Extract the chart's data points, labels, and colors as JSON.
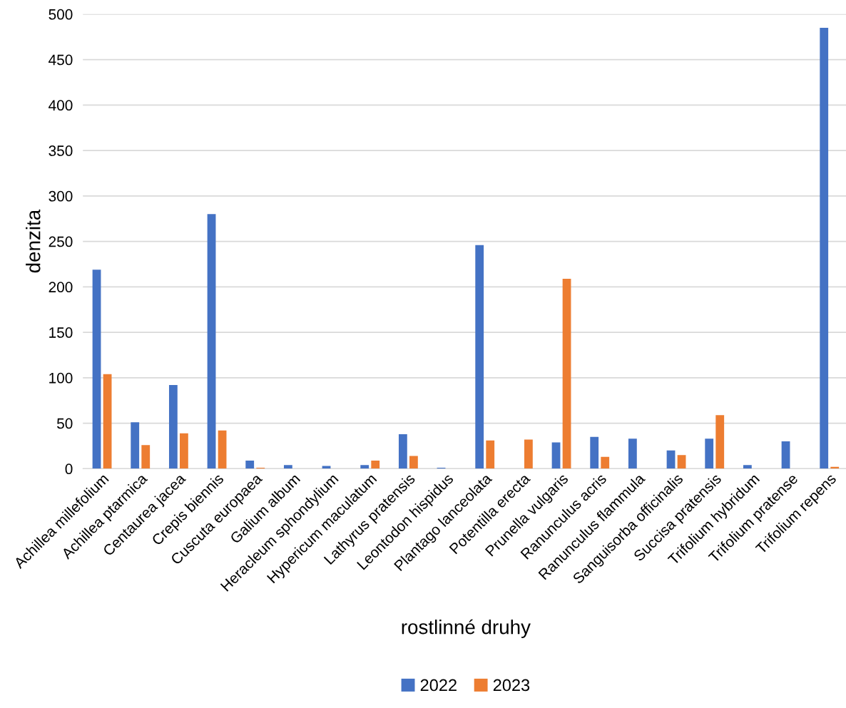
{
  "chart_data": {
    "type": "bar",
    "xlabel": "rostlinné druhy",
    "ylabel": "denzita",
    "categories": [
      "Achillea millefolium",
      "Achillea ptarmica",
      "Centaurea jacea",
      "Crepis biennis",
      "Cuscuta europaea",
      "Galium album",
      "Heracleum sphondylium",
      "Hypericum maculatum",
      "Lathyrus pratensis",
      "Leontodon hispidus",
      "Plantago lanceolata",
      "Potentilla erecta",
      "Prunella vulgaris",
      "Ranunculus acris",
      "Ranunculus flammula",
      "Sanguisorba officinalis",
      "Succisa pratensis",
      "Trifolium hybridum",
      "Trifolium pratense",
      "Trifolium repens"
    ],
    "series": [
      {
        "name": "2022",
        "color": "#4472c4",
        "values": [
          219,
          51,
          92,
          280,
          9,
          4,
          3,
          4,
          38,
          1,
          246,
          0,
          29,
          35,
          33,
          20,
          33,
          4,
          30,
          485
        ]
      },
      {
        "name": "2023",
        "color": "#ed7d31",
        "values": [
          104,
          26,
          39,
          42,
          1,
          0,
          0,
          9,
          14,
          0,
          31,
          32,
          209,
          13,
          0,
          15,
          59,
          0,
          0,
          2
        ]
      }
    ],
    "ylim": [
      0,
      500
    ],
    "yticks": [
      0,
      50,
      100,
      150,
      200,
      250,
      300,
      350,
      400,
      450,
      500
    ],
    "grid": "y",
    "legend": "bottom"
  }
}
